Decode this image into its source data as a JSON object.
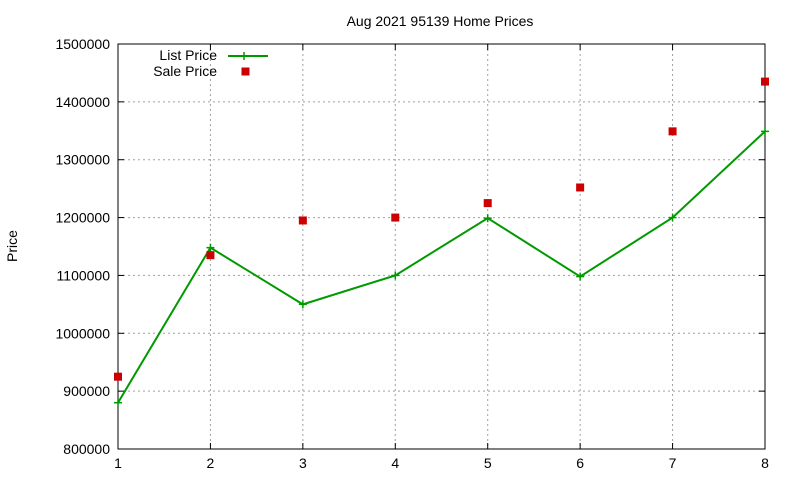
{
  "chart_data": {
    "type": "line",
    "title": "Aug 2021 95139 Home Prices",
    "xlabel": "",
    "ylabel": "Price",
    "xlim": [
      1,
      8
    ],
    "ylim": [
      800000,
      1500000
    ],
    "x_ticks": [
      "1",
      "2",
      "3",
      "4",
      "5",
      "6",
      "7",
      "8"
    ],
    "y_ticks": [
      "800000",
      "900000",
      "1000000",
      "1100000",
      "1200000",
      "1300000",
      "1400000",
      "1500000"
    ],
    "grid": true,
    "legend_position": "top-left",
    "x": [
      1,
      2,
      3,
      4,
      5,
      6,
      7,
      8
    ],
    "series": [
      {
        "name": "List Price",
        "style": "line-with-plus-markers",
        "color": "#009900",
        "values": [
          880000,
          1148000,
          1050000,
          1100000,
          1199000,
          1098000,
          1200000,
          1349000
        ]
      },
      {
        "name": "Sale Price",
        "style": "square-markers",
        "color": "#cc0000",
        "values": [
          925000,
          1135000,
          1195000,
          1200000,
          1225000,
          1252000,
          1349000,
          1435000
        ]
      }
    ]
  }
}
